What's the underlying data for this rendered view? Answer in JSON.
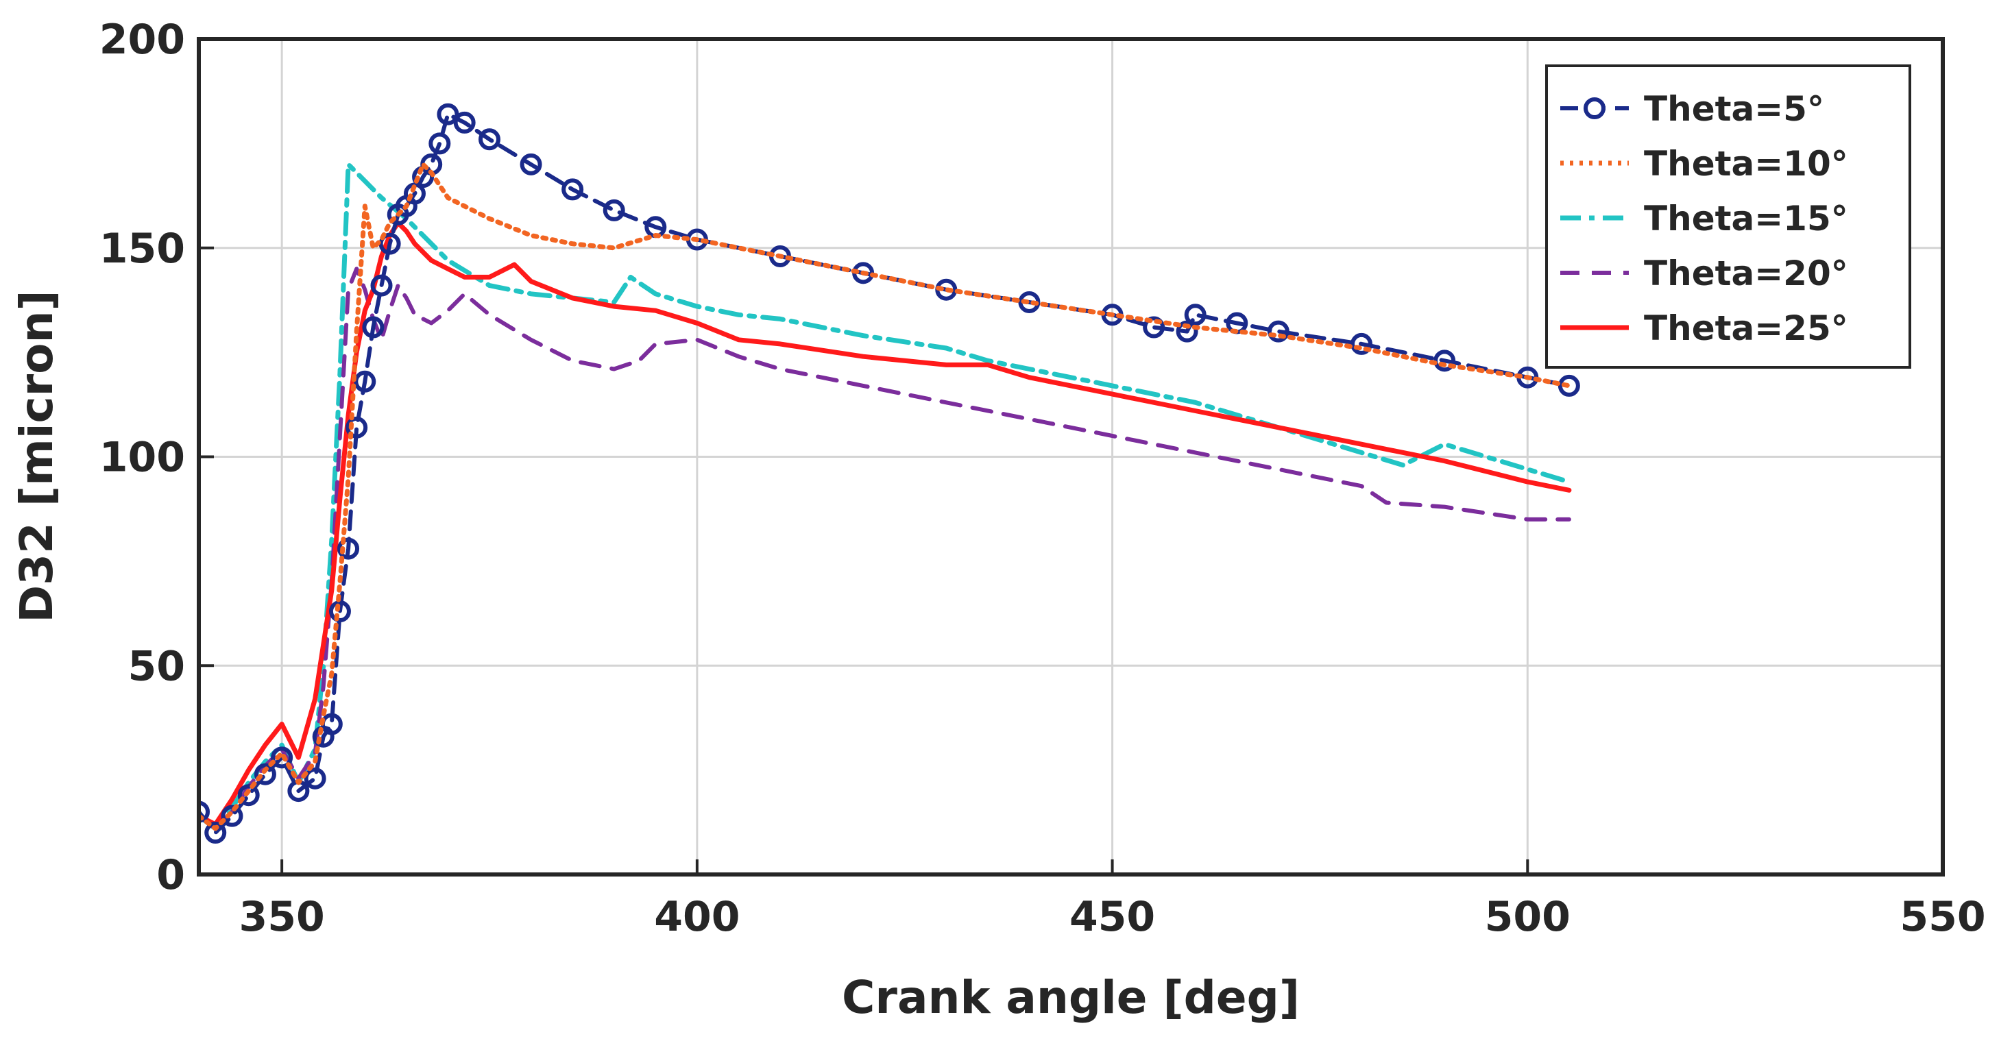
{
  "chart_data": {
    "type": "line",
    "title": "",
    "xlabel": "Crank angle [deg]",
    "ylabel": "D32 [micron]",
    "xlim": [
      340,
      550
    ],
    "ylim": [
      0,
      200
    ],
    "xticks": [
      350,
      400,
      450,
      500,
      550
    ],
    "yticks": [
      0,
      50,
      100,
      150,
      200
    ],
    "grid": true,
    "legend_position": "top-right",
    "series": [
      {
        "name": "Theta=5°",
        "color": "#1a2a8a",
        "style": "dash-circle",
        "x": [
          340,
          342,
          344,
          346,
          348,
          350,
          352,
          354,
          355,
          356,
          357,
          358,
          359,
          360,
          361,
          362,
          363,
          364,
          365,
          366,
          367,
          368,
          369,
          370,
          372,
          375,
          380,
          385,
          390,
          395,
          400,
          410,
          420,
          430,
          440,
          450,
          455,
          459,
          460,
          465,
          470,
          480,
          490,
          500,
          505
        ],
        "y": [
          15,
          10,
          14,
          19,
          24,
          28,
          20,
          23,
          33,
          36,
          63,
          78,
          107,
          118,
          131,
          141,
          151,
          158,
          160,
          163,
          167,
          170,
          175,
          182,
          180,
          176,
          170,
          164,
          159,
          155,
          152,
          148,
          144,
          140,
          137,
          134,
          131,
          130,
          134,
          132,
          130,
          127,
          123,
          119,
          117
        ]
      },
      {
        "name": "Theta=10°",
        "color": "#f26522",
        "style": "dotted",
        "x": [
          340,
          342,
          344,
          346,
          348,
          350,
          352,
          354,
          355,
          356,
          357,
          358,
          359,
          360,
          361,
          362,
          363,
          364,
          365,
          366,
          367,
          368,
          369,
          370,
          375,
          380,
          385,
          390,
          395,
          400,
          410,
          420,
          430,
          440,
          450,
          460,
          470,
          480,
          490,
          500,
          505
        ],
        "y": [
          14,
          11,
          15,
          20,
          25,
          29,
          22,
          27,
          38,
          48,
          70,
          95,
          130,
          160,
          150,
          152,
          156,
          158,
          160,
          165,
          170,
          168,
          165,
          162,
          157,
          153,
          151,
          150,
          153,
          152,
          148,
          144,
          140,
          137,
          134,
          131,
          129,
          126,
          122,
          119,
          117
        ]
      },
      {
        "name": "Theta=15°",
        "color": "#22c4c4",
        "style": "dash-dot",
        "x": [
          340,
          342,
          344,
          346,
          348,
          350,
          352,
          354,
          355,
          356,
          357,
          358,
          360,
          362,
          365,
          370,
          375,
          380,
          385,
          390,
          392,
          395,
          400,
          405,
          410,
          420,
          430,
          435,
          440,
          450,
          460,
          470,
          480,
          485,
          490,
          500,
          505
        ],
        "y": [
          14,
          11,
          16,
          22,
          27,
          31,
          22,
          30,
          50,
          80,
          120,
          170,
          166,
          162,
          157,
          147,
          141,
          139,
          138,
          137,
          143,
          139,
          136,
          134,
          133,
          129,
          126,
          123,
          121,
          117,
          113,
          107,
          101,
          98,
          103,
          97,
          94
        ]
      },
      {
        "name": "Theta=20°",
        "color": "#7b2d9c",
        "style": "dashed",
        "x": [
          340,
          342,
          344,
          346,
          348,
          350,
          352,
          354,
          355,
          356,
          357,
          358,
          359,
          360,
          361,
          362,
          363,
          364,
          365,
          366,
          368,
          370,
          372,
          375,
          380,
          385,
          390,
          393,
          395,
          400,
          405,
          410,
          420,
          430,
          440,
          450,
          460,
          470,
          480,
          483,
          490,
          500,
          505
        ],
        "y": [
          14,
          11,
          15,
          21,
          26,
          30,
          23,
          29,
          45,
          70,
          105,
          140,
          145,
          140,
          133,
          128,
          135,
          141,
          138,
          134,
          132,
          135,
          139,
          134,
          128,
          123,
          121,
          123,
          127,
          128,
          124,
          121,
          117,
          113,
          109,
          105,
          101,
          97,
          93,
          89,
          88,
          85,
          85
        ]
      },
      {
        "name": "Theta=25°",
        "color": "#ff1a1a",
        "style": "solid",
        "x": [
          340,
          342,
          344,
          346,
          348,
          350,
          351,
          352,
          353,
          354,
          355,
          356,
          357,
          358,
          359,
          360,
          361,
          362,
          363,
          364,
          365,
          366,
          368,
          370,
          372,
          375,
          378,
          380,
          385,
          390,
          395,
          400,
          405,
          410,
          420,
          430,
          435,
          440,
          450,
          460,
          470,
          480,
          490,
          500,
          505
        ],
        "y": [
          14,
          12,
          18,
          25,
          31,
          36,
          32,
          28,
          35,
          42,
          55,
          68,
          90,
          110,
          125,
          135,
          140,
          148,
          153,
          156,
          154,
          151,
          147,
          145,
          143,
          143,
          146,
          142,
          138,
          136,
          135,
          132,
          128,
          127,
          124,
          122,
          122,
          119,
          115,
          111,
          107,
          103,
          99,
          94,
          92
        ]
      }
    ]
  }
}
